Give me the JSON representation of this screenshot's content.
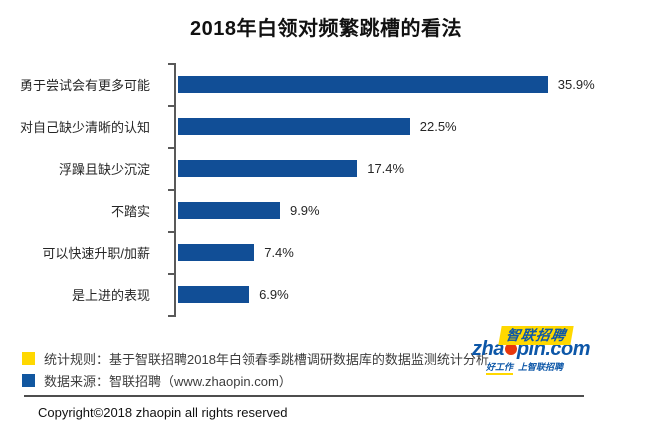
{
  "title": "2018年白领对频繁跳槽的看法",
  "chart_data": {
    "type": "bar",
    "orientation": "horizontal",
    "title": "2018年白领对频繁跳槽的看法",
    "categories": [
      "勇于尝试会有更多可能",
      "对自己缺少清晰的认知",
      "浮躁且缺少沉淀",
      "不踏实",
      "可以快速升职/加薪",
      "是上进的表现"
    ],
    "values": [
      35.9,
      22.5,
      17.4,
      9.9,
      7.4,
      6.9
    ],
    "value_labels": [
      "35.9%",
      "22.5%",
      "17.4%",
      "9.9%",
      "7.4%",
      "6.9%"
    ],
    "xlim": [
      0,
      40
    ],
    "bar_color": "#114E96",
    "grid": false,
    "legend_position": "bottom",
    "value_label_position": "end-of-bar"
  },
  "legend": {
    "items": [
      {
        "swatch_color": "#FFD800",
        "label": "统计规则：基于智联招聘2018年白领春季跳槽调研数据库的数据监测统计分析"
      },
      {
        "swatch_color": "#1157A0",
        "label": "数据来源：智联招聘（www.zhaopin.com）"
      }
    ]
  },
  "logo": {
    "brand_cn": "智联招聘",
    "domain_prefix": "zha",
    "domain_suffix": "pin.com",
    "tagline_left": "好工作",
    "tagline_right": "上智联招聘",
    "yellow": "#FFD800",
    "blue": "#0D57A8",
    "dot_color": "#E8380D"
  },
  "footer": {
    "copyright": "Copyright©2018 zhaopin all rights reserved"
  }
}
